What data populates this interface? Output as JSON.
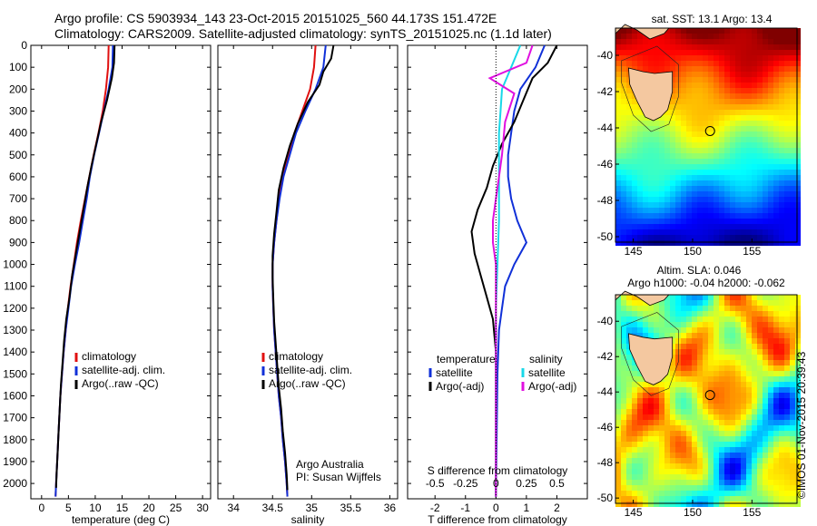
{
  "title": {
    "line1": "Argo profile: CS 5903934_143 23-Oct-2015 20151025_560 44.173S 151.472E",
    "line2": "Climatology: CARS2009. Satellite-adjusted climatology: synTS_20151025.nc (1.1d later)"
  },
  "stamp": "©IMOS 01-Nov-2015 20:39:43",
  "colors": {
    "climatology": "#e01010",
    "satellite": "#1030d8",
    "argo": "#000000",
    "cyan": "#18d8e8",
    "magenta": "#e010e0"
  },
  "depth_ticks": [
    0,
    100,
    200,
    300,
    400,
    500,
    600,
    700,
    800,
    900,
    1000,
    1100,
    1200,
    1300,
    1400,
    1500,
    1600,
    1700,
    1800,
    1900,
    2000
  ],
  "chart_data": [
    {
      "type": "line",
      "xlabel": "temperature (deg C)",
      "xticks": [
        0,
        5,
        10,
        15,
        20,
        25,
        30
      ],
      "xlim": [
        -2,
        31.5
      ],
      "ylim": [
        2070,
        0
      ],
      "legend": [
        "climatology",
        "satellite-adj. clim.",
        "Argo(..raw -QC)"
      ],
      "series": [
        {
          "name": "climatology",
          "color": "climatology",
          "points": [
            [
              12.5,
              0
            ],
            [
              12.4,
              100
            ],
            [
              12.0,
              200
            ],
            [
              11.4,
              300
            ],
            [
              10.6,
              400
            ],
            [
              9.7,
              500
            ],
            [
              8.9,
              600
            ],
            [
              8.1,
              700
            ],
            [
              7.3,
              800
            ],
            [
              6.6,
              900
            ],
            [
              6.0,
              1000
            ],
            [
              5.4,
              1100
            ],
            [
              4.9,
              1200
            ],
            [
              4.5,
              1300
            ],
            [
              4.1,
              1400
            ],
            [
              3.8,
              1500
            ],
            [
              3.5,
              1600
            ],
            [
              3.3,
              1700
            ],
            [
              3.1,
              1800
            ],
            [
              2.9,
              1900
            ],
            [
              2.7,
              2000
            ],
            [
              2.6,
              2060
            ]
          ]
        },
        {
          "name": "satellite-adj. clim.",
          "color": "satellite",
          "points": [
            [
              13.3,
              0
            ],
            [
              13.2,
              100
            ],
            [
              12.5,
              200
            ],
            [
              11.6,
              300
            ],
            [
              10.7,
              400
            ],
            [
              9.8,
              500
            ],
            [
              9.0,
              600
            ],
            [
              8.4,
              700
            ],
            [
              7.7,
              800
            ],
            [
              7.0,
              900
            ],
            [
              6.2,
              1000
            ],
            [
              5.5,
              1100
            ],
            [
              5.0,
              1200
            ],
            [
              4.5,
              1300
            ],
            [
              4.1,
              1400
            ],
            [
              3.8,
              1500
            ],
            [
              3.5,
              1600
            ],
            [
              3.3,
              1700
            ],
            [
              3.1,
              1800
            ],
            [
              2.9,
              1900
            ],
            [
              2.7,
              2000
            ],
            [
              2.6,
              2060
            ]
          ]
        },
        {
          "name": "Argo(..raw -QC)",
          "color": "argo",
          "points": [
            [
              13.6,
              0
            ],
            [
              13.5,
              80
            ],
            [
              13.1,
              150
            ],
            [
              12.2,
              250
            ],
            [
              11.1,
              350
            ],
            [
              10.2,
              450
            ],
            [
              9.3,
              550
            ],
            [
              8.5,
              650
            ],
            [
              7.8,
              750
            ],
            [
              7.1,
              850
            ],
            [
              6.4,
              950
            ],
            [
              5.7,
              1050
            ],
            [
              5.2,
              1150
            ],
            [
              4.6,
              1250
            ],
            [
              4.2,
              1350
            ],
            [
              3.9,
              1450
            ],
            [
              3.6,
              1550
            ],
            [
              3.4,
              1650
            ],
            [
              3.2,
              1750
            ],
            [
              3.0,
              1850
            ],
            [
              2.8,
              1950
            ],
            [
              2.7,
              2020
            ]
          ]
        }
      ]
    },
    {
      "type": "line",
      "xlabel": "salinity",
      "xticks": [
        34,
        34.5,
        35,
        35.5,
        36
      ],
      "xlim": [
        33.8,
        36.1
      ],
      "ylim": [
        2070,
        0
      ],
      "legend": [
        "climatology",
        "satellite-adj. clim.",
        "Argo(..raw -QC)"
      ],
      "annotation": [
        "Argo Australia",
        "PI: Susan Wijffels"
      ],
      "series": [
        {
          "name": "climatology",
          "color": "climatology",
          "points": [
            [
              35.05,
              0
            ],
            [
              35.03,
              100
            ],
            [
              34.98,
              200
            ],
            [
              34.88,
              300
            ],
            [
              34.78,
              400
            ],
            [
              34.7,
              500
            ],
            [
              34.63,
              600
            ],
            [
              34.58,
              700
            ],
            [
              34.55,
              800
            ],
            [
              34.52,
              900
            ],
            [
              34.5,
              1000
            ],
            [
              34.5,
              1100
            ],
            [
              34.51,
              1200
            ],
            [
              34.52,
              1300
            ],
            [
              34.54,
              1400
            ],
            [
              34.56,
              1500
            ],
            [
              34.58,
              1600
            ],
            [
              34.61,
              1700
            ],
            [
              34.63,
              1800
            ],
            [
              34.66,
              1900
            ],
            [
              34.68,
              2000
            ],
            [
              34.69,
              2060
            ]
          ]
        },
        {
          "name": "satellite-adj. clim.",
          "color": "satellite",
          "points": [
            [
              35.18,
              0
            ],
            [
              35.15,
              100
            ],
            [
              35.05,
              200
            ],
            [
              34.92,
              300
            ],
            [
              34.8,
              400
            ],
            [
              34.72,
              500
            ],
            [
              34.64,
              600
            ],
            [
              34.59,
              700
            ],
            [
              34.55,
              800
            ],
            [
              34.52,
              900
            ],
            [
              34.5,
              1000
            ],
            [
              34.5,
              1100
            ],
            [
              34.51,
              1200
            ],
            [
              34.52,
              1300
            ],
            [
              34.54,
              1400
            ],
            [
              34.56,
              1500
            ],
            [
              34.58,
              1600
            ],
            [
              34.61,
              1700
            ],
            [
              34.63,
              1800
            ],
            [
              34.66,
              1900
            ],
            [
              34.68,
              2000
            ],
            [
              34.69,
              2060
            ]
          ]
        },
        {
          "name": "Argo(..raw -QC)",
          "color": "argo",
          "points": [
            [
              35.28,
              0
            ],
            [
              35.25,
              60
            ],
            [
              35.15,
              120
            ],
            [
              35.1,
              180
            ],
            [
              34.95,
              260
            ],
            [
              34.82,
              360
            ],
            [
              34.72,
              460
            ],
            [
              34.64,
              560
            ],
            [
              34.58,
              660
            ],
            [
              34.55,
              760
            ],
            [
              34.52,
              860
            ],
            [
              34.5,
              960
            ],
            [
              34.5,
              1060
            ],
            [
              34.51,
              1160
            ],
            [
              34.52,
              1260
            ],
            [
              34.54,
              1360
            ],
            [
              34.56,
              1460
            ],
            [
              34.58,
              1560
            ],
            [
              34.61,
              1660
            ],
            [
              34.63,
              1760
            ],
            [
              34.66,
              1860
            ],
            [
              34.68,
              1960
            ],
            [
              34.69,
              2030
            ]
          ]
        }
      ]
    },
    {
      "type": "line",
      "xlabel": "T difference from climatology",
      "xticks": [
        -2,
        -1,
        0,
        1,
        2
      ],
      "top_xlabel": "S difference from climatology",
      "top_xticks": [
        "-0.5",
        "-0.25",
        "0",
        "0.25",
        "0.5"
      ],
      "top_xtick_values": [
        -0.5,
        -0.25,
        0,
        0.25,
        0.5
      ],
      "xlim": [
        -2.9,
        3.0
      ],
      "ylim": [
        2070,
        0
      ],
      "legend": {
        "temperature": "temperature",
        "salinity": "salinity",
        "t_sat": "satellite",
        "t_argo": "Argo(-adj)",
        "s_sat": "satellite",
        "s_argo": "Argo(-adj)"
      },
      "series": [
        {
          "name": "T satellite",
          "color": "satellite",
          "points": [
            [
              1.6,
              0
            ],
            [
              1.3,
              100
            ],
            [
              0.8,
              200
            ],
            [
              0.6,
              300
            ],
            [
              0.5,
              400
            ],
            [
              0.4,
              500
            ],
            [
              0.4,
              600
            ],
            [
              0.5,
              700
            ],
            [
              0.7,
              800
            ],
            [
              1.0,
              900
            ],
            [
              0.6,
              1000
            ],
            [
              0.3,
              1100
            ],
            [
              0.2,
              1200
            ],
            [
              0.1,
              1300
            ],
            [
              0.05,
              1500
            ],
            [
              0,
              2060
            ]
          ]
        },
        {
          "name": "T Argo(-adj)",
          "color": "argo",
          "points": [
            [
              2.0,
              0
            ],
            [
              1.7,
              80
            ],
            [
              1.2,
              150
            ],
            [
              0.9,
              250
            ],
            [
              0.6,
              350
            ],
            [
              0.2,
              450
            ],
            [
              -0.1,
              550
            ],
            [
              -0.3,
              650
            ],
            [
              -0.6,
              750
            ],
            [
              -0.8,
              850
            ],
            [
              -0.7,
              950
            ],
            [
              -0.5,
              1050
            ],
            [
              -0.3,
              1150
            ],
            [
              -0.1,
              1250
            ],
            [
              0,
              1400
            ],
            [
              0,
              2060
            ]
          ]
        },
        {
          "name": "S satellite",
          "color": "cyan",
          "points": [
            [
              0.8,
              0
            ],
            [
              0.5,
              100
            ],
            [
              0.2,
              200
            ],
            [
              0.15,
              300
            ],
            [
              0.1,
              400
            ],
            [
              0.1,
              600
            ],
            [
              0.1,
              800
            ],
            [
              0.05,
              1000
            ],
            [
              0,
              1200
            ],
            [
              0,
              2060
            ]
          ]
        },
        {
          "name": "S Argo(-adj)",
          "color": "magenta",
          "points": [
            [
              1.2,
              0
            ],
            [
              1.0,
              80
            ],
            [
              -0.2,
              150
            ],
            [
              0.6,
              220
            ],
            [
              0.3,
              350
            ],
            [
              0.2,
              500
            ],
            [
              0.1,
              600
            ],
            [
              0,
              700
            ],
            [
              -0.1,
              800
            ],
            [
              -0.1,
              900
            ],
            [
              0,
              1000
            ],
            [
              0,
              2060
            ]
          ]
        }
      ]
    },
    {
      "type": "heatmap",
      "title": "sat. SST: 13.1 Argo: 13.4",
      "xticks": [
        145,
        150,
        155
      ],
      "yticks": [
        -40,
        -42,
        -44,
        -46,
        -48,
        -50
      ],
      "xlim": [
        143.5,
        158.8
      ],
      "ylim": [
        -50.3,
        -38.5
      ],
      "marker": {
        "lon": 151.472,
        "lat": -44.173
      }
    },
    {
      "type": "heatmap",
      "title_line1": "Altim. SLA: 0.046",
      "title_line2": "Argo h1000: -0.04 h2000: -0.062",
      "xticks": [
        145,
        150,
        155
      ],
      "yticks": [
        -40,
        -42,
        -44,
        -46,
        -48,
        -50
      ],
      "xlim": [
        143.5,
        158.8
      ],
      "ylim": [
        -50.3,
        -38.5
      ],
      "marker": {
        "lon": 151.472,
        "lat": -44.173
      }
    }
  ]
}
